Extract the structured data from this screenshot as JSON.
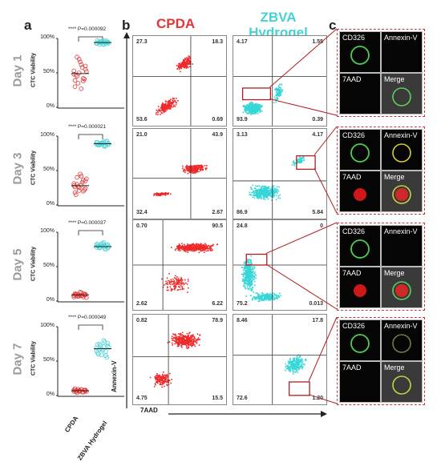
{
  "panels": {
    "a": "a",
    "b": "b",
    "c": "c"
  },
  "days": [
    "Day 1",
    "Day 3",
    "Day 5",
    "Day 7"
  ],
  "viability": {
    "ylabel": "CTC Viability",
    "ticks": [
      "100%",
      "50%",
      "0%"
    ],
    "significance": "****",
    "pvalues": [
      "P=0.000092",
      "P=0.000021",
      "P=0.000037",
      "P=0.000049"
    ],
    "categories": [
      "CPDA",
      "ZBVA Hydrogel"
    ],
    "colors": {
      "cpda": "#e53434",
      "zbva": "#45d2d4"
    }
  },
  "chart_data": [
    {
      "type": "scatter",
      "title": "Day 1",
      "ylabel": "CTC Viability",
      "categories": [
        "CPDA",
        "ZBVA Hydrogel"
      ],
      "ylim": [
        0,
        100
      ],
      "series": [
        {
          "name": "CPDA",
          "values": [
            48,
            55,
            38,
            62,
            70,
            45,
            30,
            52,
            41,
            58,
            66,
            35,
            47,
            53,
            60,
            42,
            27,
            50,
            73,
            39
          ],
          "mean": 49
        },
        {
          "name": "ZBVA Hydrogel",
          "values": [
            93,
            95,
            92,
            96,
            94,
            91,
            97,
            93,
            95,
            94,
            92,
            96,
            95,
            93,
            94,
            97,
            91,
            95,
            94,
            93
          ],
          "mean": 94
        }
      ]
    },
    {
      "type": "scatter",
      "title": "Day 3",
      "ylabel": "CTC Viability",
      "categories": [
        "CPDA",
        "ZBVA Hydrogel"
      ],
      "ylim": [
        0,
        100
      ],
      "series": [
        {
          "name": "CPDA",
          "values": [
            28,
            35,
            20,
            42,
            25,
            30,
            18,
            38,
            22,
            33,
            45,
            27,
            15,
            31,
            24,
            36,
            29,
            21,
            40,
            26
          ],
          "mean": 28
        },
        {
          "name": "ZBVA Hydrogel",
          "values": [
            88,
            90,
            86,
            92,
            89,
            87,
            91,
            88,
            93,
            85,
            90,
            89,
            87,
            91,
            88,
            92,
            86,
            90,
            89,
            88
          ],
          "mean": 89
        }
      ]
    },
    {
      "type": "scatter",
      "title": "Day 5",
      "ylabel": "CTC Viability",
      "categories": [
        "CPDA",
        "ZBVA Hydrogel"
      ],
      "ylim": [
        0,
        100
      ],
      "series": [
        {
          "name": "CPDA",
          "values": [
            8,
            10,
            6,
            12,
            9,
            7,
            11,
            5,
            9,
            8,
            13,
            7,
            10,
            6,
            9,
            11,
            8,
            7,
            10,
            9
          ],
          "mean": 9
        },
        {
          "name": "ZBVA Hydrogel",
          "values": [
            78,
            82,
            75,
            85,
            80,
            77,
            83,
            79,
            81,
            76,
            84,
            78,
            80,
            82,
            77,
            79,
            81,
            83,
            78,
            80
          ],
          "mean": 79
        }
      ]
    },
    {
      "type": "scatter",
      "title": "Day 7",
      "ylabel": "CTC Viability",
      "categories": [
        "CPDA",
        "ZBVA Hydrogel"
      ],
      "ylim": [
        0,
        100
      ],
      "series": [
        {
          "name": "CPDA",
          "values": [
            6,
            8,
            5,
            9,
            7,
            4,
            10,
            6,
            8,
            5,
            7,
            9,
            6,
            8,
            7,
            5,
            9,
            6,
            7,
            8
          ],
          "mean": 7
        },
        {
          "name": "ZBVA Hydrogel",
          "values": [
            65,
            72,
            58,
            80,
            68,
            75,
            62,
            70,
            55,
            78,
            66,
            73,
            60,
            69,
            76,
            64,
            71,
            59,
            67,
            74
          ],
          "mean": 68
        }
      ]
    }
  ],
  "flow": {
    "cpda_title": "CPDA",
    "zbva_title_line1": "ZBVA",
    "zbva_title_line2": "Hydrogel",
    "yaxis": "Annexin-V",
    "xaxis": "7AAD",
    "colors": {
      "cpda": "#ee2a2a",
      "zbva": "#36d6d8",
      "box": "#b11e1e"
    },
    "rows": [
      {
        "cpda": {
          "tl": "27.3",
          "tr": "18.3",
          "bl": "53.6",
          "br": "0.69"
        },
        "zbva": {
          "tl": "4.17",
          "tr": "1.55",
          "bl": "93.9",
          "br": "0.39"
        }
      },
      {
        "cpda": {
          "tl": "21.0",
          "tr": "43.9",
          "bl": "32.4",
          "br": "2.67"
        },
        "zbva": {
          "tl": "3.13",
          "tr": "4.17",
          "bl": "86.9",
          "br": "5.84"
        }
      },
      {
        "cpda": {
          "tl": "0.70",
          "tr": "90.5",
          "bl": "2.62",
          "br": "6.22"
        },
        "zbva": {
          "tl": "24.8",
          "tr": "0",
          "bl": "75.2",
          "br": "0.013"
        }
      },
      {
        "cpda": {
          "tl": "0.82",
          "tr": "78.9",
          "bl": "4.75",
          "br": "15.5"
        },
        "zbva": {
          "tl": "8.46",
          "tr": "17.8",
          "bl": "72.6",
          "br": "1.20"
        }
      }
    ]
  },
  "imaging": {
    "labels": {
      "cd326": "CD326",
      "annexin": "Annexin-V",
      "aad": "7AAD",
      "merge": "Merge"
    }
  }
}
